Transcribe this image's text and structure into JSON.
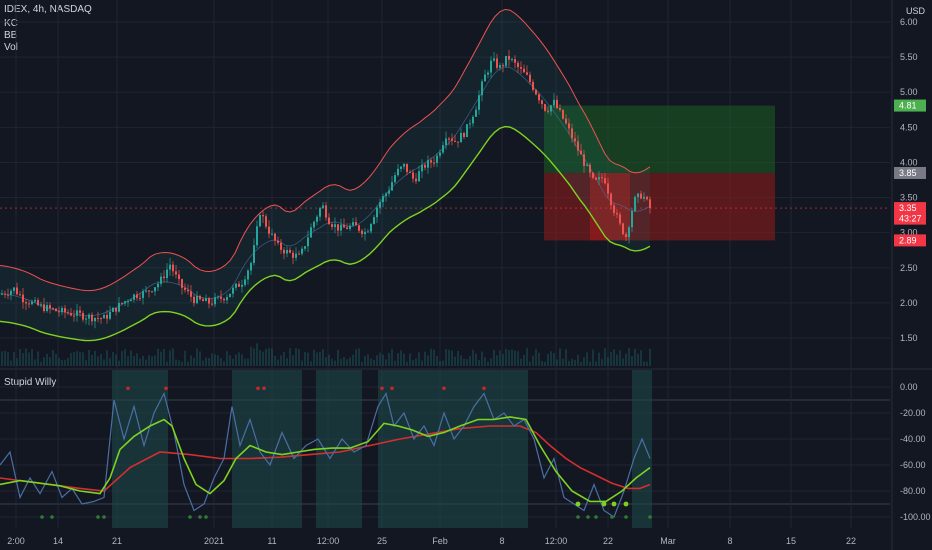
{
  "header": {
    "symbol_line": "IDEX, 4h, NASDAQ",
    "indicators": [
      "KC",
      "BB",
      "Vol"
    ],
    "currency": "USD",
    "oscillator_title": "Stupid Willy"
  },
  "colors": {
    "background": "#131722",
    "grid": "#1f2433",
    "up_candle": "#26a69a",
    "down_candle": "#ef5350",
    "kc_line": "#ef5350",
    "bb_lower": "#7ed321",
    "profit_zone": "#1b5e20",
    "loss_zone": "#8b1a1a",
    "osc_fast": "#4a6fa5",
    "osc_signal": "#7ed321",
    "osc_slow": "#d32f2f"
  },
  "chart_data": {
    "type": "candlestick",
    "price_axis": {
      "ticks": [
        "6.00",
        "5.50",
        "5.00",
        "4.50",
        "4.00",
        "3.50",
        "3.00",
        "2.50",
        "2.00",
        "1.50"
      ],
      "range": [
        1.2,
        6.2
      ]
    },
    "oscillator_axis": {
      "ticks": [
        "0.00",
        "-20.00",
        "-40.00",
        "-60.00",
        "-80.00",
        "-100.00"
      ],
      "range": [
        -105,
        5
      ]
    },
    "x_ticks": [
      "2:00",
      "14",
      "21",
      "2021",
      "11",
      "12:00",
      "25",
      "Feb",
      "8",
      "12:00",
      "22",
      "Mar",
      "8",
      "15",
      "22"
    ],
    "price_tags": [
      {
        "text": "4.81",
        "value": 4.81,
        "color": "#4caf50"
      },
      {
        "text": "3.85",
        "value": 3.85,
        "color": "#787b86"
      },
      {
        "text": "3.35",
        "value": 3.35,
        "color": "#f23645"
      },
      {
        "text": "43:27",
        "value": 3.2,
        "color": "#f23645"
      },
      {
        "text": "2.89",
        "value": 2.89,
        "color": "#f23645"
      }
    ],
    "position": {
      "take_profit": 4.81,
      "entry": 3.85,
      "stop_loss": 2.89
    },
    "price_path": [
      [
        0,
        2.12
      ],
      [
        14,
        2.2
      ],
      [
        24,
        2.05
      ],
      [
        40,
        1.95
      ],
      [
        58,
        1.88
      ],
      [
        72,
        1.85
      ],
      [
        90,
        1.8
      ],
      [
        104,
        1.78
      ],
      [
        118,
        1.95
      ],
      [
        132,
        2.1
      ],
      [
        146,
        2.15
      ],
      [
        160,
        2.3
      ],
      [
        170,
        2.55
      ],
      [
        180,
        2.25
      ],
      [
        194,
        2.05
      ],
      [
        210,
        2.0
      ],
      [
        226,
        2.1
      ],
      [
        242,
        2.3
      ],
      [
        252,
        2.6
      ],
      [
        260,
        3.3
      ],
      [
        268,
        3.05
      ],
      [
        278,
        2.8
      ],
      [
        290,
        2.7
      ],
      [
        300,
        2.65
      ],
      [
        312,
        3.1
      ],
      [
        322,
        3.4
      ],
      [
        330,
        3.15
      ],
      [
        340,
        3.05
      ],
      [
        354,
        3.1
      ],
      [
        366,
        3.0
      ],
      [
        378,
        3.4
      ],
      [
        388,
        3.6
      ],
      [
        396,
        3.85
      ],
      [
        404,
        3.95
      ],
      [
        414,
        3.75
      ],
      [
        424,
        3.95
      ],
      [
        436,
        4.05
      ],
      [
        446,
        4.4
      ],
      [
        456,
        4.3
      ],
      [
        466,
        4.45
      ],
      [
        476,
        4.8
      ],
      [
        484,
        5.2
      ],
      [
        492,
        5.45
      ],
      [
        500,
        5.35
      ],
      [
        508,
        5.5
      ],
      [
        518,
        5.35
      ],
      [
        528,
        5.2
      ],
      [
        536,
        5.0
      ],
      [
        546,
        4.75
      ],
      [
        554,
        4.85
      ],
      [
        564,
        4.6
      ],
      [
        574,
        4.3
      ],
      [
        584,
        4.0
      ],
      [
        594,
        3.7
      ],
      [
        604,
        3.8
      ],
      [
        612,
        3.4
      ],
      [
        620,
        3.1
      ],
      [
        626,
        2.95
      ],
      [
        634,
        3.45
      ],
      [
        642,
        3.55
      ],
      [
        650,
        3.35
      ]
    ],
    "osc_fast": [
      [
        0,
        -60
      ],
      [
        10,
        -50
      ],
      [
        20,
        -85
      ],
      [
        30,
        -70
      ],
      [
        40,
        -82
      ],
      [
        52,
        -65
      ],
      [
        62,
        -85
      ],
      [
        72,
        -78
      ],
      [
        82,
        -90
      ],
      [
        94,
        -88
      ],
      [
        104,
        -85
      ],
      [
        114,
        -10
      ],
      [
        124,
        -40
      ],
      [
        134,
        -15
      ],
      [
        144,
        -45
      ],
      [
        154,
        -20
      ],
      [
        164,
        -5
      ],
      [
        174,
        -35
      ],
      [
        184,
        -75
      ],
      [
        194,
        -95
      ],
      [
        204,
        -90
      ],
      [
        214,
        -70
      ],
      [
        224,
        -55
      ],
      [
        232,
        -15
      ],
      [
        240,
        -45
      ],
      [
        250,
        -25
      ],
      [
        260,
        -50
      ],
      [
        270,
        -60
      ],
      [
        282,
        -35
      ],
      [
        294,
        -55
      ],
      [
        306,
        -45
      ],
      [
        318,
        -40
      ],
      [
        330,
        -55
      ],
      [
        342,
        -40
      ],
      [
        354,
        -50
      ],
      [
        366,
        -45
      ],
      [
        378,
        -15
      ],
      [
        386,
        -5
      ],
      [
        394,
        -30
      ],
      [
        404,
        -20
      ],
      [
        414,
        -40
      ],
      [
        424,
        -30
      ],
      [
        434,
        -45
      ],
      [
        444,
        -20
      ],
      [
        454,
        -40
      ],
      [
        464,
        -30
      ],
      [
        474,
        -15
      ],
      [
        484,
        -5
      ],
      [
        494,
        -25
      ],
      [
        504,
        -20
      ],
      [
        514,
        -30
      ],
      [
        524,
        -25
      ],
      [
        534,
        -40
      ],
      [
        544,
        -70
      ],
      [
        554,
        -55
      ],
      [
        564,
        -85
      ],
      [
        574,
        -90
      ],
      [
        584,
        -95
      ],
      [
        594,
        -75
      ],
      [
        604,
        -95
      ],
      [
        614,
        -100
      ],
      [
        624,
        -80
      ],
      [
        634,
        -55
      ],
      [
        642,
        -40
      ],
      [
        650,
        -55
      ]
    ],
    "osc_signal": [
      [
        0,
        -75
      ],
      [
        20,
        -72
      ],
      [
        40,
        -74
      ],
      [
        60,
        -76
      ],
      [
        80,
        -80
      ],
      [
        100,
        -82
      ],
      [
        110,
        -70
      ],
      [
        120,
        -48
      ],
      [
        134,
        -38
      ],
      [
        150,
        -30
      ],
      [
        164,
        -25
      ],
      [
        172,
        -30
      ],
      [
        184,
        -55
      ],
      [
        196,
        -75
      ],
      [
        210,
        -82
      ],
      [
        224,
        -72
      ],
      [
        236,
        -55
      ],
      [
        250,
        -45
      ],
      [
        266,
        -50
      ],
      [
        282,
        -52
      ],
      [
        298,
        -50
      ],
      [
        314,
        -48
      ],
      [
        332,
        -47
      ],
      [
        350,
        -47
      ],
      [
        368,
        -42
      ],
      [
        384,
        -28
      ],
      [
        398,
        -30
      ],
      [
        412,
        -33
      ],
      [
        428,
        -38
      ],
      [
        444,
        -35
      ],
      [
        460,
        -30
      ],
      [
        478,
        -25
      ],
      [
        494,
        -25
      ],
      [
        510,
        -23
      ],
      [
        526,
        -25
      ],
      [
        540,
        -45
      ],
      [
        556,
        -65
      ],
      [
        572,
        -80
      ],
      [
        590,
        -88
      ],
      [
        606,
        -88
      ],
      [
        622,
        -80
      ],
      [
        636,
        -70
      ],
      [
        650,
        -62
      ]
    ],
    "osc_slow": [
      [
        0,
        -70
      ],
      [
        40,
        -74
      ],
      [
        80,
        -78
      ],
      [
        104,
        -80
      ],
      [
        130,
        -62
      ],
      [
        160,
        -50
      ],
      [
        190,
        -52
      ],
      [
        220,
        -55
      ],
      [
        250,
        -55
      ],
      [
        280,
        -54
      ],
      [
        310,
        -52
      ],
      [
        340,
        -50
      ],
      [
        370,
        -45
      ],
      [
        400,
        -40
      ],
      [
        430,
        -36
      ],
      [
        460,
        -32
      ],
      [
        490,
        -30
      ],
      [
        520,
        -30
      ],
      [
        536,
        -35
      ],
      [
        550,
        -45
      ],
      [
        566,
        -55
      ],
      [
        580,
        -62
      ],
      [
        596,
        -68
      ],
      [
        612,
        -74
      ],
      [
        628,
        -78
      ],
      [
        640,
        -78
      ],
      [
        650,
        -75
      ]
    ]
  }
}
